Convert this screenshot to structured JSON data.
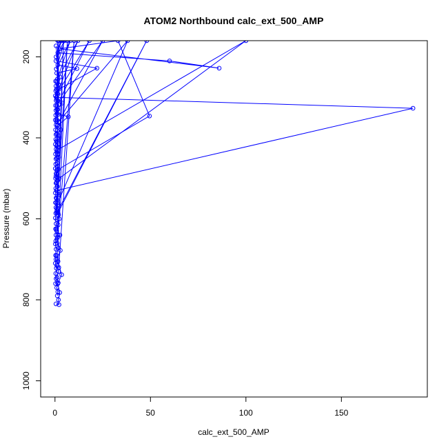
{
  "chart_data": {
    "type": "line",
    "title": "ATOM2 Northbound calc_ext_500_AMP",
    "xlabel": "calc_ext_500_AMP",
    "ylabel": "Pressure (mbar)",
    "xlim": [
      -7.5,
      195
    ],
    "ylim": [
      1040,
      160
    ],
    "y_reversed": true,
    "x_ticks": [
      0,
      50,
      100,
      150
    ],
    "y_ticks": [
      200,
      400,
      600,
      800,
      1000
    ],
    "grid": false,
    "marker": "open-circle",
    "series_color": "#0000ff",
    "series": [
      {
        "points": [
          [
            0.5,
            810
          ],
          [
            2.1,
            812
          ],
          [
            1.8,
            800
          ],
          [
            2.5,
            782
          ],
          [
            1.5,
            760
          ],
          [
            3.5,
            738
          ],
          [
            1.2,
            700
          ],
          [
            2.8,
            678
          ],
          [
            1.0,
            650
          ],
          [
            2.6,
            640
          ],
          [
            0.8,
            625
          ],
          [
            2.2,
            600
          ],
          [
            1.6,
            585
          ],
          [
            48,
            160
          ],
          [
            1.0,
            585
          ],
          [
            0.6,
            560
          ],
          [
            2.0,
            540
          ],
          [
            1.2,
            520
          ],
          [
            0.8,
            510
          ],
          [
            0.5,
            495
          ],
          [
            1.5,
            470
          ],
          [
            1.0,
            450
          ],
          [
            1.6,
            440
          ],
          [
            0.9,
            420
          ],
          [
            1.2,
            410
          ],
          [
            2.2,
            400
          ],
          [
            1.0,
            390
          ],
          [
            3.0,
            380
          ],
          [
            1.2,
            370
          ],
          [
            7.0,
            348
          ],
          [
            1.1,
            340
          ],
          [
            1.5,
            330
          ],
          [
            3.8,
            314
          ],
          [
            0.7,
            300
          ],
          [
            1.3,
            290
          ],
          [
            2.0,
            270
          ],
          [
            2.6,
            250
          ],
          [
            0.9,
            240
          ],
          [
            11.5,
            229
          ],
          [
            1.5,
            220
          ],
          [
            0.6,
            173
          ]
        ]
      },
      {
        "points": [
          [
            0.8,
            530
          ],
          [
            187.5,
            327
          ],
          [
            1.0,
            300
          ],
          [
            2.0,
            280
          ],
          [
            22,
            228
          ],
          [
            0.5,
            210
          ],
          [
            3.0,
            160
          ]
        ]
      },
      {
        "points": [
          [
            1.0,
            480
          ],
          [
            49.5,
            346
          ],
          [
            33,
            160
          ],
          [
            2.5,
            180
          ],
          [
            86,
            228
          ],
          [
            60,
            210
          ],
          [
            1.5,
            190
          ]
        ]
      },
      {
        "points": [
          [
            1.5,
            560
          ],
          [
            38,
            160
          ],
          [
            2.0,
            360
          ],
          [
            25,
            160
          ],
          [
            1.0,
            320
          ],
          [
            18,
            160
          ],
          [
            1.2,
            290
          ],
          [
            12,
            160
          ],
          [
            0.9,
            260
          ],
          [
            8,
            160
          ],
          [
            0.7,
            230
          ],
          [
            5,
            160
          ],
          [
            0.6,
            200
          ],
          [
            3.5,
            160
          ]
        ]
      },
      {
        "points": [
          [
            2.0,
            720
          ],
          [
            10,
            160
          ],
          [
            1.5,
            640
          ],
          [
            6.5,
            160
          ],
          [
            1.0,
            580
          ],
          [
            4.5,
            160
          ],
          [
            2.2,
            500
          ],
          [
            100,
            160
          ],
          [
            1.3,
            430
          ],
          [
            2.0,
            160
          ],
          [
            0.8,
            360
          ],
          [
            1.4,
            160
          ]
        ]
      },
      {
        "points": [
          [
            0.3,
            760
          ],
          [
            0.6,
            748
          ],
          [
            0.4,
            735
          ],
          [
            0.7,
            722
          ],
          [
            0.2,
            710
          ],
          [
            0.5,
            700
          ],
          [
            0.3,
            690
          ],
          [
            0.6,
            675
          ],
          [
            0.2,
            662
          ],
          [
            0.4,
            655
          ],
          [
            0.5,
            640
          ],
          [
            0.3,
            625
          ],
          [
            0.6,
            612
          ],
          [
            0.2,
            598
          ],
          [
            0.4,
            586
          ],
          [
            0.5,
            572
          ],
          [
            0.3,
            560
          ],
          [
            0.6,
            548
          ],
          [
            0.2,
            536
          ],
          [
            0.4,
            525
          ],
          [
            0.5,
            512
          ],
          [
            0.3,
            500
          ],
          [
            0.6,
            488
          ],
          [
            0.2,
            476
          ],
          [
            0.4,
            465
          ],
          [
            0.5,
            452
          ],
          [
            0.3,
            440
          ],
          [
            0.6,
            428
          ],
          [
            0.2,
            416
          ],
          [
            0.4,
            404
          ],
          [
            0.5,
            392
          ],
          [
            0.3,
            380
          ],
          [
            0.6,
            368
          ],
          [
            0.2,
            356
          ],
          [
            0.4,
            344
          ],
          [
            0.5,
            332
          ],
          [
            0.3,
            320
          ],
          [
            0.6,
            308
          ],
          [
            0.2,
            296
          ],
          [
            0.4,
            284
          ],
          [
            0.5,
            272
          ],
          [
            0.3,
            260
          ]
        ]
      },
      {
        "points": [
          [
            1.2,
            790
          ],
          [
            1.5,
            780
          ],
          [
            0.9,
            770
          ],
          [
            1.7,
            758
          ],
          [
            1.1,
            745
          ],
          [
            1.9,
            730
          ],
          [
            1.0,
            715
          ],
          [
            1.6,
            705
          ],
          [
            0.8,
            690
          ],
          [
            1.8,
            672
          ],
          [
            1.2,
            660
          ],
          [
            1.5,
            645
          ],
          [
            0.9,
            630
          ],
          [
            1.7,
            615
          ],
          [
            1.1,
            602
          ],
          [
            1.9,
            590
          ],
          [
            1.0,
            575
          ],
          [
            1.6,
            565
          ],
          [
            0.8,
            550
          ],
          [
            1.8,
            535
          ],
          [
            1.2,
            520
          ],
          [
            1.5,
            505
          ],
          [
            0.9,
            490
          ],
          [
            1.7,
            478
          ],
          [
            1.1,
            462
          ],
          [
            1.9,
            448
          ],
          [
            1.0,
            435
          ],
          [
            1.6,
            422
          ],
          [
            0.8,
            408
          ],
          [
            1.8,
            395
          ],
          [
            1.2,
            382
          ],
          [
            1.5,
            368
          ],
          [
            0.9,
            355
          ],
          [
            1.7,
            342
          ],
          [
            1.1,
            330
          ],
          [
            1.9,
            318
          ],
          [
            1.0,
            305
          ],
          [
            1.6,
            292
          ],
          [
            0.8,
            280
          ],
          [
            1.8,
            268
          ],
          [
            1.2,
            255
          ]
        ]
      }
    ]
  }
}
